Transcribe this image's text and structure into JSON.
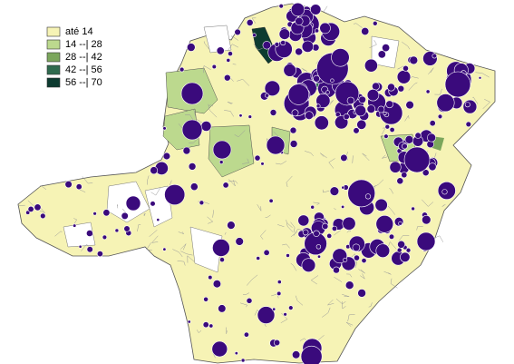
{
  "legend": {
    "items": [
      {
        "label": "até 14",
        "color": "#f6f3b5"
      },
      {
        "label": "14 --| 28",
        "color": "#bcd98e"
      },
      {
        "label": "28 --| 42",
        "color": "#7ba65c"
      },
      {
        "label": "42 --| 56",
        "color": "#2f6a4e"
      },
      {
        "label": "56 --| 70",
        "color": "#0d3b30"
      }
    ]
  }
}
